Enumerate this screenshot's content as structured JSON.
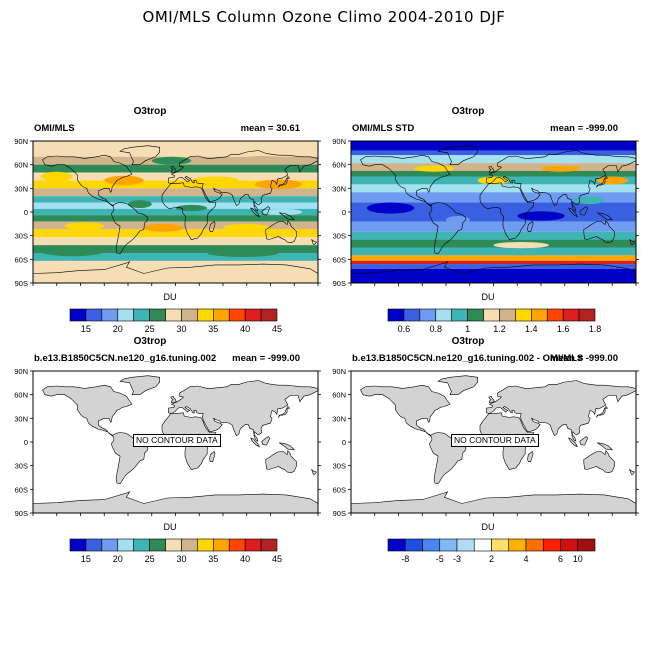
{
  "title": "OMI/MLS Column Ozone Climo 2004-2010 DJF",
  "lat_labels": [
    "90N",
    "60N",
    "30N",
    "0",
    "30S",
    "60S",
    "90S"
  ],
  "panels": [
    {
      "title": "O3trop",
      "left_label": "OMI/MLS",
      "right_label": "mean =  30.61",
      "has_data": true,
      "field": "mean",
      "colorbar": {
        "label": "DU",
        "colors": [
          "#0000c8",
          "#3a5fe0",
          "#6f9cf0",
          "#a3e0f0",
          "#3fb4b4",
          "#2e8b57",
          "#f5deb3",
          "#d2b48c",
          "#ffd700",
          "#ffa500",
          "#ff4500",
          "#dc1e1e",
          "#b22222"
        ],
        "ticks": [
          "15",
          "20",
          "25",
          "30",
          "35",
          "40",
          "45"
        ],
        "tick_boundaries": [
          1,
          3,
          5,
          7,
          9,
          11,
          13
        ]
      },
      "nocontour": ""
    },
    {
      "title": "O3trop",
      "left_label": "OMI/MLS STD",
      "right_label": "mean = -999.00",
      "has_data": true,
      "field": "std",
      "colorbar": {
        "label": "DU",
        "colors": [
          "#0000c8",
          "#3a5fe0",
          "#6f9cf0",
          "#a3e0f0",
          "#3fb4b4",
          "#2e8b57",
          "#f5deb3",
          "#d2b48c",
          "#ffd700",
          "#ffa500",
          "#ff4500",
          "#dc1e1e",
          "#b22222"
        ],
        "ticks": [
          "0.6",
          "0.8",
          "1",
          "1.2",
          "1.4",
          "1.6",
          "1.8"
        ],
        "tick_boundaries": [
          1,
          3,
          5,
          7,
          9,
          11,
          13
        ]
      },
      "nocontour": ""
    },
    {
      "title": "O3trop",
      "left_label": "b.e13.B1850C5CN.ne120_g16.tuning.002",
      "right_label": "mean = -999.00",
      "has_data": false,
      "field": "none",
      "colorbar": {
        "label": "DU",
        "colors": [
          "#0000c8",
          "#3a5fe0",
          "#6f9cf0",
          "#a3e0f0",
          "#3fb4b4",
          "#2e8b57",
          "#f5deb3",
          "#d2b48c",
          "#ffd700",
          "#ffa500",
          "#ff4500",
          "#dc1e1e",
          "#b22222"
        ],
        "ticks": [
          "15",
          "20",
          "25",
          "30",
          "35",
          "40",
          "45"
        ],
        "tick_boundaries": [
          1,
          3,
          5,
          7,
          9,
          11,
          13
        ]
      },
      "nocontour": "NO CONTOUR DATA"
    },
    {
      "title": "O3trop",
      "left_label": "b.e13.B1850C5CN.ne120_g16.tuning.002 - OMI/MLS",
      "right_label": "mean = -999.00",
      "has_data": false,
      "field": "none",
      "colorbar": {
        "label": "DU",
        "colors": [
          "#0000c8",
          "#1f4fe0",
          "#4a86f0",
          "#7fb8f5",
          "#b0dcf5",
          "#ffffff",
          "#ffe066",
          "#ffb000",
          "#ff7000",
          "#ff2000",
          "#d01010",
          "#a01010"
        ],
        "ticks": [
          "-8",
          "-5",
          "-3",
          "2",
          "4",
          "6",
          "10"
        ],
        "tick_boundaries": [
          1,
          3,
          4,
          6,
          8,
          10,
          11
        ]
      },
      "nocontour": "NO CONTOUR DATA"
    }
  ]
}
